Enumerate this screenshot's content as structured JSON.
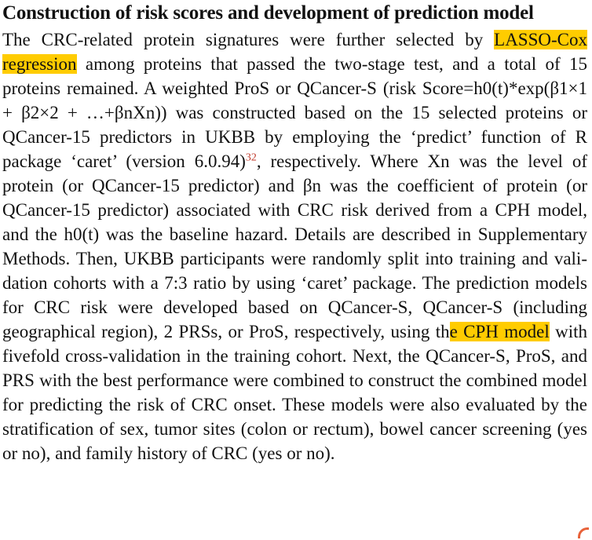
{
  "section": {
    "heading": "Construction of risk scores and development of prediction model"
  },
  "paragraph": {
    "seg1": "The CRC-related protein signatures were further selected by ",
    "hl1": "LASSO-Cox regression",
    "seg2": " among proteins that passed the two-stage test, and a total of 15 proteins remained. A weighted ProS or QCancer-S (risk Score=h0(t)*exp(β1×1 + β2×2 + …+βnXn)) was constructed based on the 15 selected proteins or QCancer-15 predictors in UKBB by employing the ‘predict’ function of R package ‘caret’ (version 6.0.94)",
    "ref": "32",
    "seg3": ", respectively. Where Xn was the level of protein (or QCancer-15 pre­dictor) and βn was the coefficient of protein (or QCancer-15 predictor) associated with CRC risk derived from a CPH model, and the h0(t) was the baseline hazard. Details are described in Supplementary Methods. Then, UKBB participants were randomly split into training and vali­dation cohorts with a 7:3 ratio by using ‘caret’ package. The prediction models for CRC risk were developed based on QCancer-S, QCancer-S (including geographical region), 2 PRSs, or ProS, respectively, using th",
    "hl2": "e CPH model",
    "seg4": " with fivefold cross-validation in the training cohort. Next, the QCancer-S, ProS, and PRS with the best performance were combined to construct the combined model for predicting the risk of CRC onset. These models were also evaluated by the stratification of sex, tumor sites (colon or rectum), bowel cancer screening (yes or no), and family history of CRC (yes or no)."
  },
  "colors": {
    "highlight": "#ffcc00",
    "reference": "#c0392b",
    "corner_mark": "#e8623a"
  }
}
